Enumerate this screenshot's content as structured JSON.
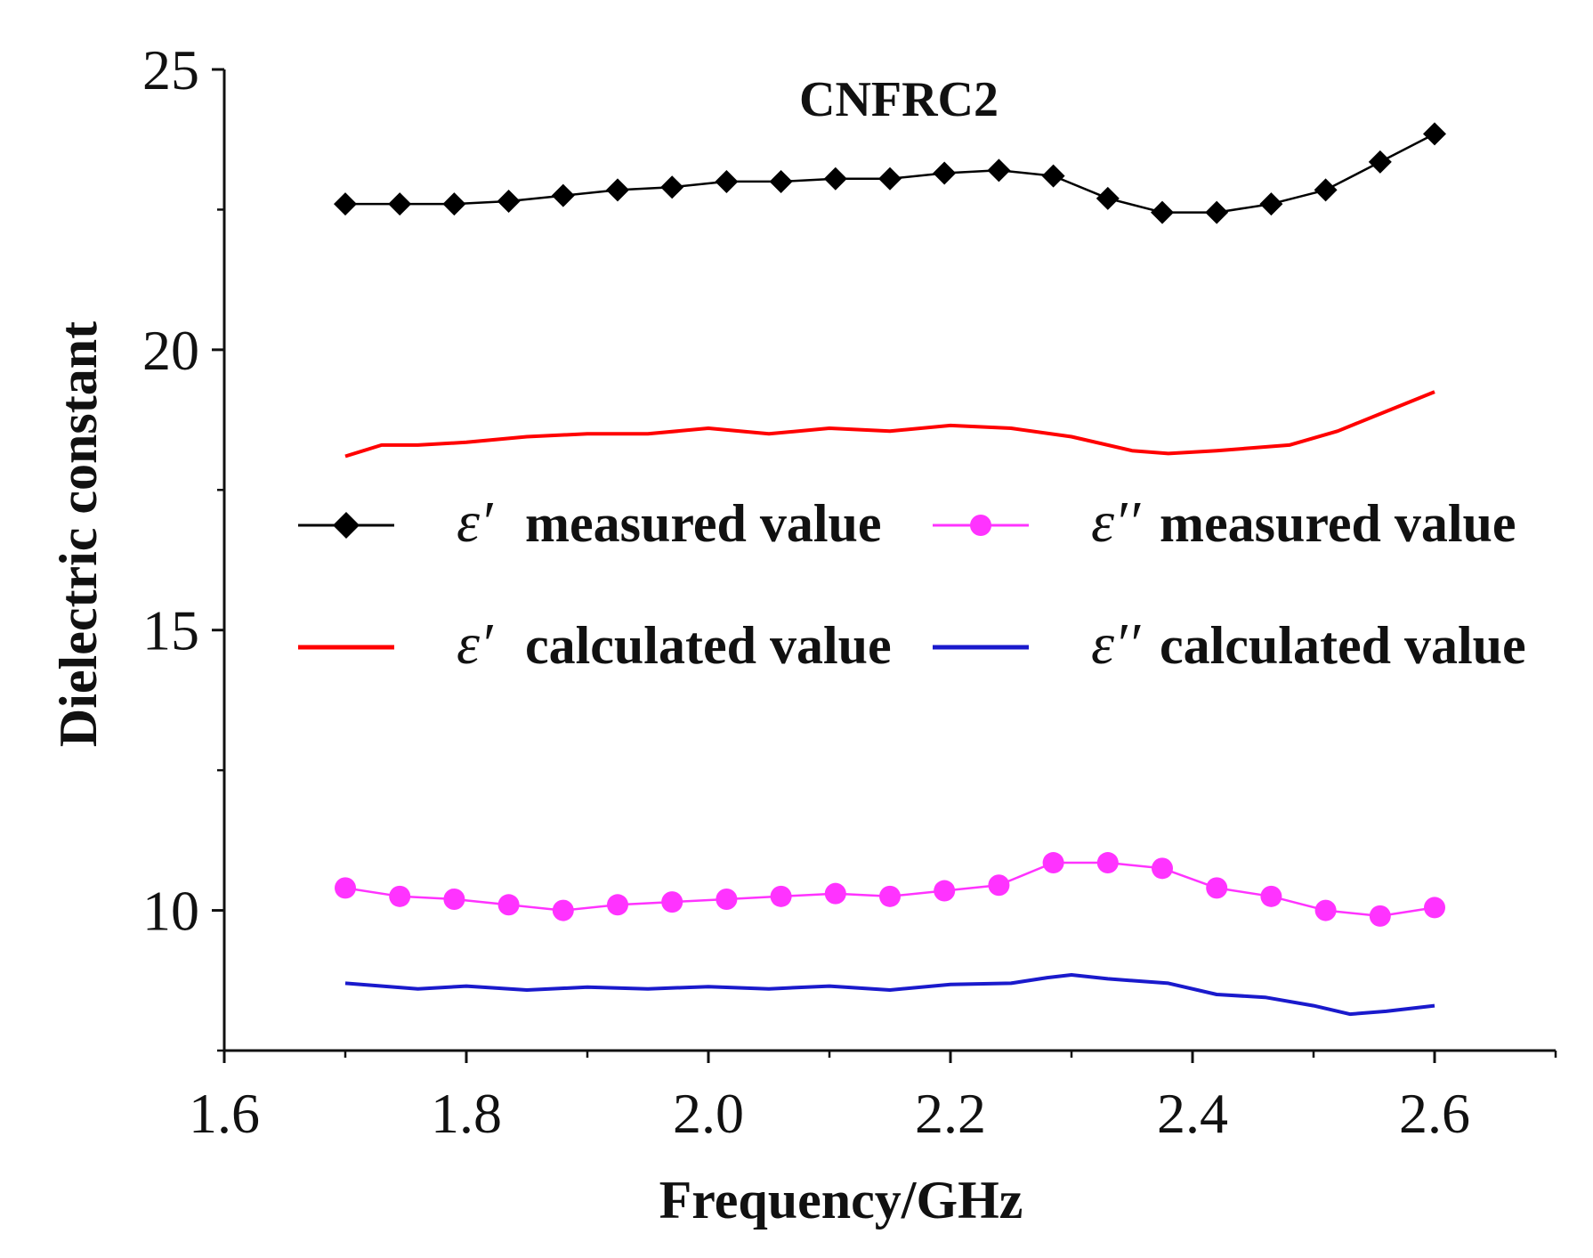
{
  "chart_data": {
    "type": "line",
    "title": "CNFRC2",
    "xlabel": "Frequency/GHz",
    "ylabel": "Dielectric constant",
    "xlim": [
      1.6,
      2.7
    ],
    "ylim": [
      7.5,
      25
    ],
    "xticks": [
      1.6,
      1.8,
      2.0,
      2.2,
      2.4,
      2.6
    ],
    "xtick_labels": [
      "1.6",
      "1.8",
      "2.0",
      "2.2",
      "2.4",
      "2.6"
    ],
    "yticks": [
      10,
      15,
      20,
      25
    ],
    "ytick_labels": [
      "10",
      "15",
      "20",
      "25"
    ],
    "legend_position": "center",
    "series": [
      {
        "name": "ε′ measured value",
        "symbol": "ε′",
        "label": "measured value",
        "color": "#000000",
        "marker": "diamond",
        "x": [
          1.7,
          1.745,
          1.79,
          1.835,
          1.88,
          1.925,
          1.97,
          2.015,
          2.06,
          2.105,
          2.15,
          2.195,
          2.24,
          2.285,
          2.33,
          2.375,
          2.42,
          2.465,
          2.51,
          2.555,
          2.6
        ],
        "y": [
          22.6,
          22.6,
          22.6,
          22.65,
          22.75,
          22.85,
          22.9,
          23.0,
          23.0,
          23.05,
          23.05,
          23.15,
          23.2,
          23.1,
          22.7,
          22.45,
          22.45,
          22.6,
          22.85,
          23.35,
          23.85
        ]
      },
      {
        "name": "ε′′ measured value",
        "symbol": "ε′′",
        "label": "measured value",
        "color": "#ff33ff",
        "marker": "circle",
        "x": [
          1.7,
          1.745,
          1.79,
          1.835,
          1.88,
          1.925,
          1.97,
          2.015,
          2.06,
          2.105,
          2.15,
          2.195,
          2.24,
          2.285,
          2.33,
          2.375,
          2.42,
          2.465,
          2.51,
          2.555,
          2.6
        ],
        "y": [
          10.4,
          10.25,
          10.2,
          10.1,
          10.0,
          10.1,
          10.15,
          10.2,
          10.25,
          10.3,
          10.25,
          10.35,
          10.45,
          10.85,
          10.85,
          10.75,
          10.4,
          10.25,
          10.0,
          9.9,
          10.05
        ]
      },
      {
        "name": "ε′ calculated value",
        "symbol": "ε′",
        "label": "calculated value",
        "color": "#ff0000",
        "marker": "none",
        "x": [
          1.7,
          1.73,
          1.76,
          1.8,
          1.85,
          1.9,
          1.95,
          2.0,
          2.05,
          2.1,
          2.15,
          2.2,
          2.25,
          2.3,
          2.35,
          2.38,
          2.42,
          2.48,
          2.52,
          2.56,
          2.6
        ],
        "y": [
          18.1,
          18.3,
          18.3,
          18.35,
          18.45,
          18.5,
          18.5,
          18.6,
          18.5,
          18.6,
          18.55,
          18.65,
          18.6,
          18.45,
          18.2,
          18.15,
          18.2,
          18.3,
          18.55,
          18.9,
          19.25
        ]
      },
      {
        "name": "ε′′ calculated value",
        "symbol": "ε′′",
        "label": "calculated value",
        "color": "#1a1acc",
        "marker": "none",
        "x": [
          1.7,
          1.76,
          1.8,
          1.85,
          1.9,
          1.95,
          2.0,
          2.05,
          2.1,
          2.15,
          2.2,
          2.25,
          2.28,
          2.3,
          2.33,
          2.38,
          2.42,
          2.46,
          2.5,
          2.53,
          2.56,
          2.6
        ],
        "y": [
          8.7,
          8.6,
          8.65,
          8.58,
          8.63,
          8.6,
          8.64,
          8.6,
          8.65,
          8.58,
          8.68,
          8.7,
          8.8,
          8.85,
          8.78,
          8.7,
          8.5,
          8.45,
          8.3,
          8.15,
          8.2,
          8.3
        ]
      }
    ]
  }
}
